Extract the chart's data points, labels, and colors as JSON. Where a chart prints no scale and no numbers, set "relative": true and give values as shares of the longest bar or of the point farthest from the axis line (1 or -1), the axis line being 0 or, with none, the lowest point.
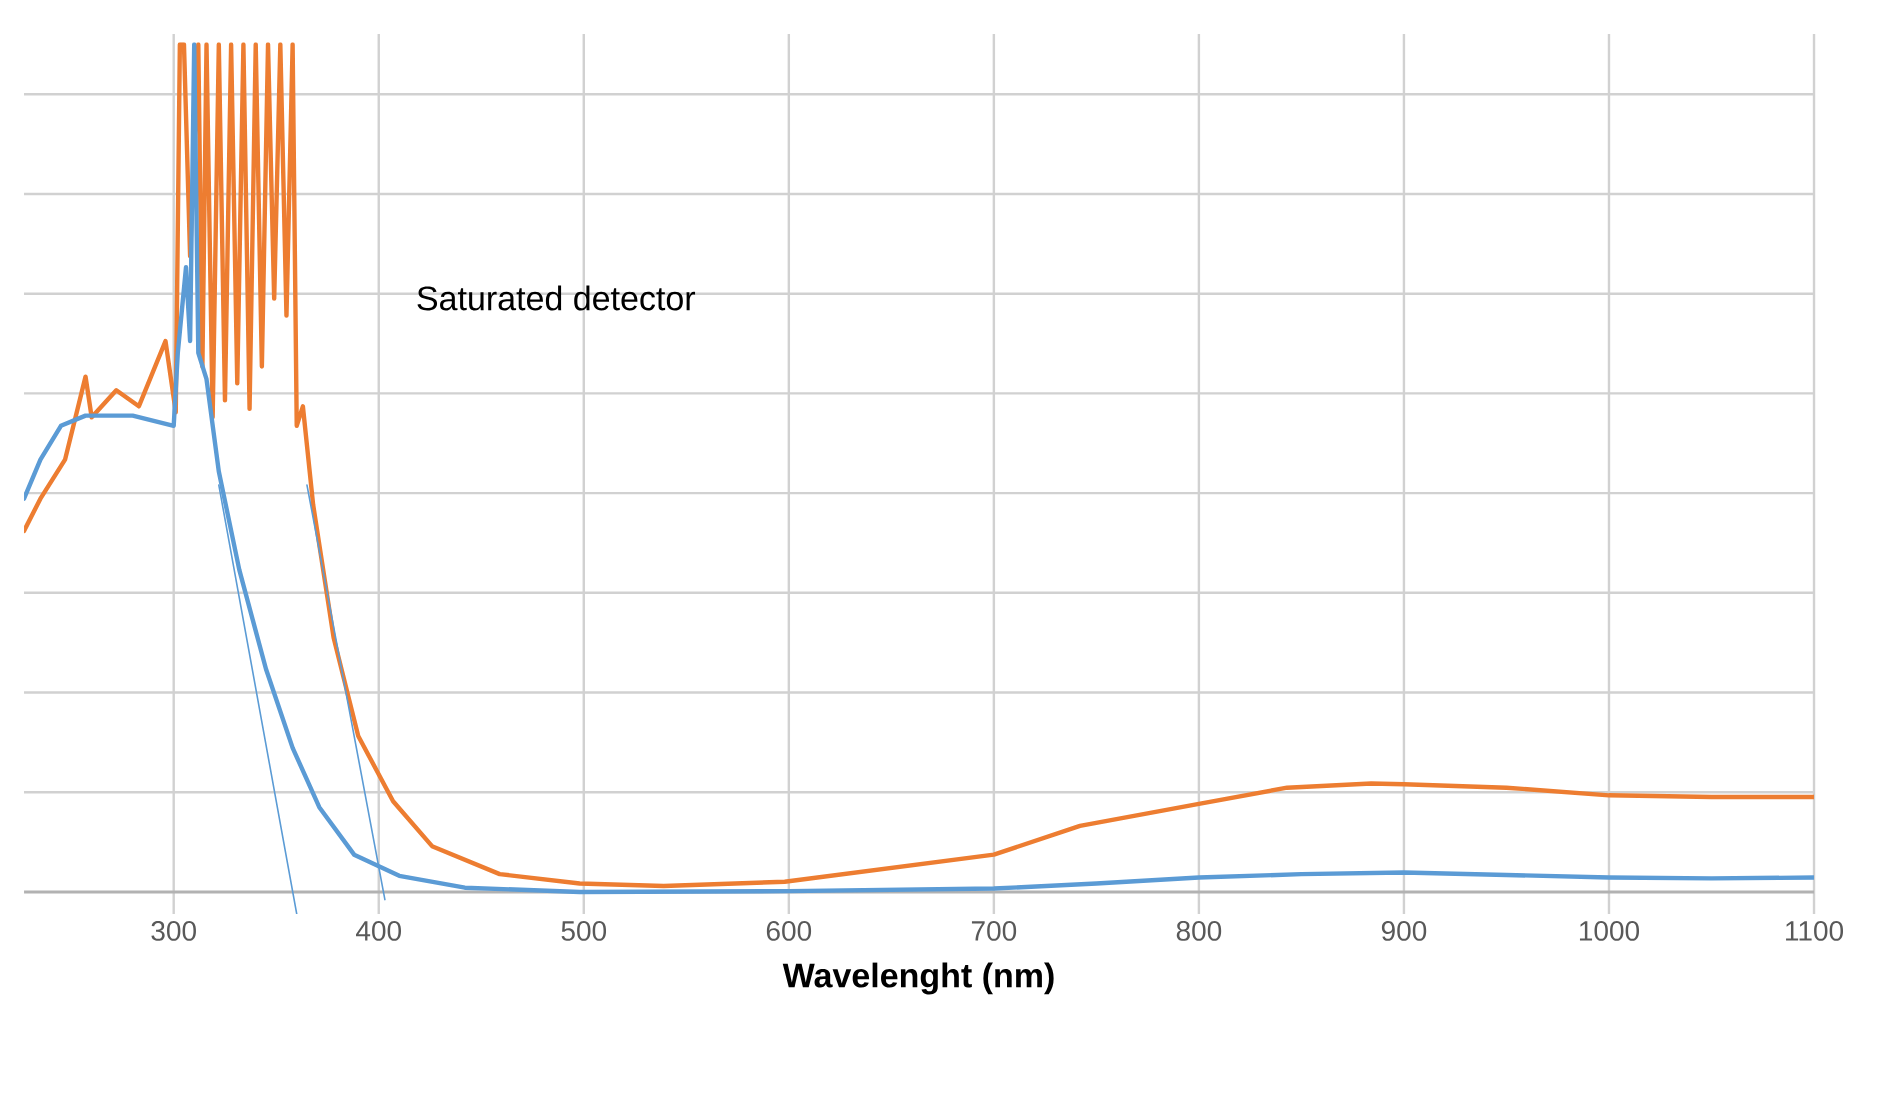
{
  "chart_data": {
    "type": "line",
    "xlabel": "Wavelenght (nm)",
    "relative": true,
    "xlim": [
      227,
      1100
    ],
    "xticks": [
      300,
      400,
      500,
      600,
      700,
      800,
      900,
      1000,
      1100
    ],
    "grid": true,
    "annotations": [
      "Saturated detector"
    ],
    "series": [
      {
        "color": "#ed7d31",
        "x": [
          227,
          235,
          247,
          257,
          260,
          272,
          283,
          296,
          301,
          303,
          305,
          308,
          312,
          314,
          316,
          319,
          322,
          325,
          328,
          331,
          334,
          337,
          340,
          343,
          346,
          349,
          352,
          355,
          358,
          360,
          363,
          368,
          378,
          390,
          407,
          426,
          459,
          498,
          539,
          598,
          700,
          742,
          800,
          843,
          884,
          900,
          950,
          1000,
          1050,
          1100
        ],
        "values": [
          0.426,
          0.464,
          0.51,
          0.608,
          0.56,
          0.592,
          0.573,
          0.65,
          0.566,
          1.0,
          1.0,
          0.75,
          1.0,
          0.62,
          1.0,
          0.56,
          1.0,
          0.58,
          1.0,
          0.6,
          1.0,
          0.57,
          1.0,
          0.62,
          1.0,
          0.7,
          1.0,
          0.68,
          1.0,
          0.55,
          0.573,
          0.457,
          0.3,
          0.184,
          0.107,
          0.054,
          0.021,
          0.01,
          0.007,
          0.012,
          0.044,
          0.078,
          0.104,
          0.123,
          0.128,
          0.127,
          0.123,
          0.114,
          0.112,
          0.112
        ]
      },
      {
        "color": "#5b9bd5",
        "x": [
          227,
          235,
          245,
          257,
          280,
          300,
          302,
          306,
          308,
          310,
          312,
          316,
          322,
          332,
          345,
          358,
          371,
          388,
          410,
          442,
          498,
          600,
          700,
          750,
          800,
          850,
          900,
          950,
          1000,
          1050,
          1100
        ],
        "values": [
          0.464,
          0.51,
          0.55,
          0.562,
          0.562,
          0.55,
          0.636,
          0.737,
          0.65,
          1.0,
          0.636,
          0.605,
          0.496,
          0.38,
          0.263,
          0.17,
          0.1,
          0.044,
          0.019,
          0.005,
          0.0,
          0.001,
          0.004,
          0.01,
          0.017,
          0.021,
          0.023,
          0.02,
          0.017,
          0.016,
          0.017
        ]
      },
      {
        "color": "#5b9bd5",
        "x": [
          322,
          360
        ],
        "values": [
          0.48,
          -0.026
        ]
      },
      {
        "color": "#5b9bd5",
        "x": [
          365,
          403
        ],
        "values": [
          0.48,
          -0.009
        ]
      }
    ]
  }
}
